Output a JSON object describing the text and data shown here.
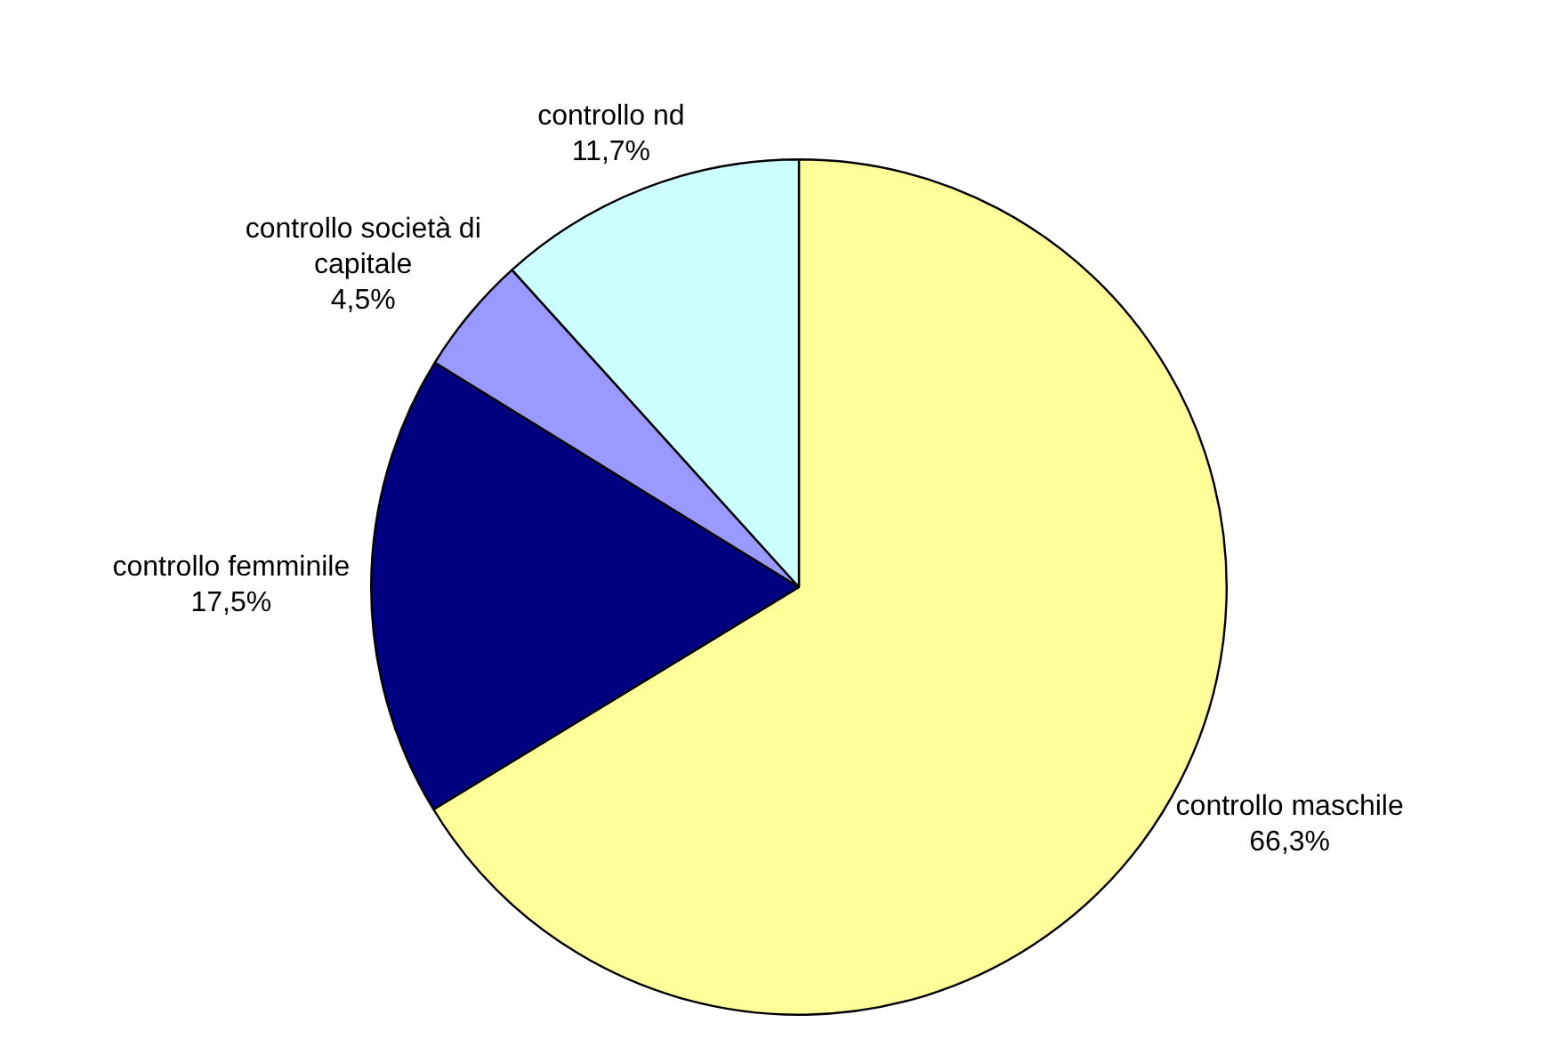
{
  "chart_data": {
    "type": "pie",
    "categories": [
      "controllo maschile",
      "controllo femminile",
      "controllo società di capitale",
      "controllo nd"
    ],
    "values": [
      66.3,
      17.5,
      4.5,
      11.7
    ],
    "colors": [
      "#ffff99",
      "#000080",
      "#9999ff",
      "#ccffff"
    ],
    "value_labels": [
      "66,3%",
      "17,5%",
      "4,5%",
      "11,7%"
    ],
    "legend": false
  }
}
